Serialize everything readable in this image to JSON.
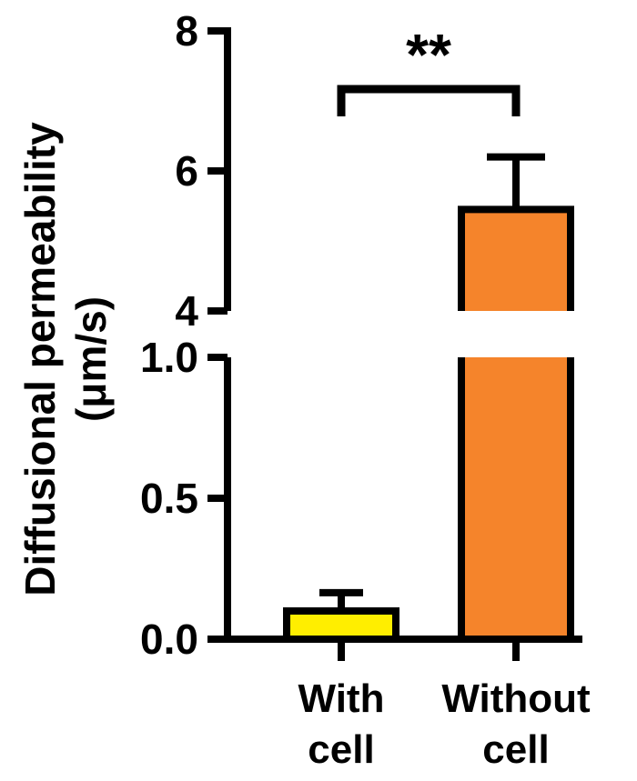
{
  "chart_data": {
    "type": "bar",
    "categories": [
      [
        "With",
        "cell"
      ],
      [
        "Without",
        "cell"
      ]
    ],
    "values": [
      0.1,
      5.45
    ],
    "errors": [
      0.065,
      0.75
    ],
    "colors": [
      "#ffee00",
      "#f5842b"
    ],
    "ylabel_lines": [
      "Diffusional permeability",
      "(μm/s)"
    ],
    "axis_break": {
      "lower": [
        0,
        1.0
      ],
      "upper": [
        4,
        8
      ]
    },
    "yticks_lower": [
      "0.0",
      "0.5",
      "1.0"
    ],
    "yticks_upper": [
      "4",
      "6",
      "8"
    ],
    "significance": "**",
    "grid": false,
    "legend": "none"
  }
}
